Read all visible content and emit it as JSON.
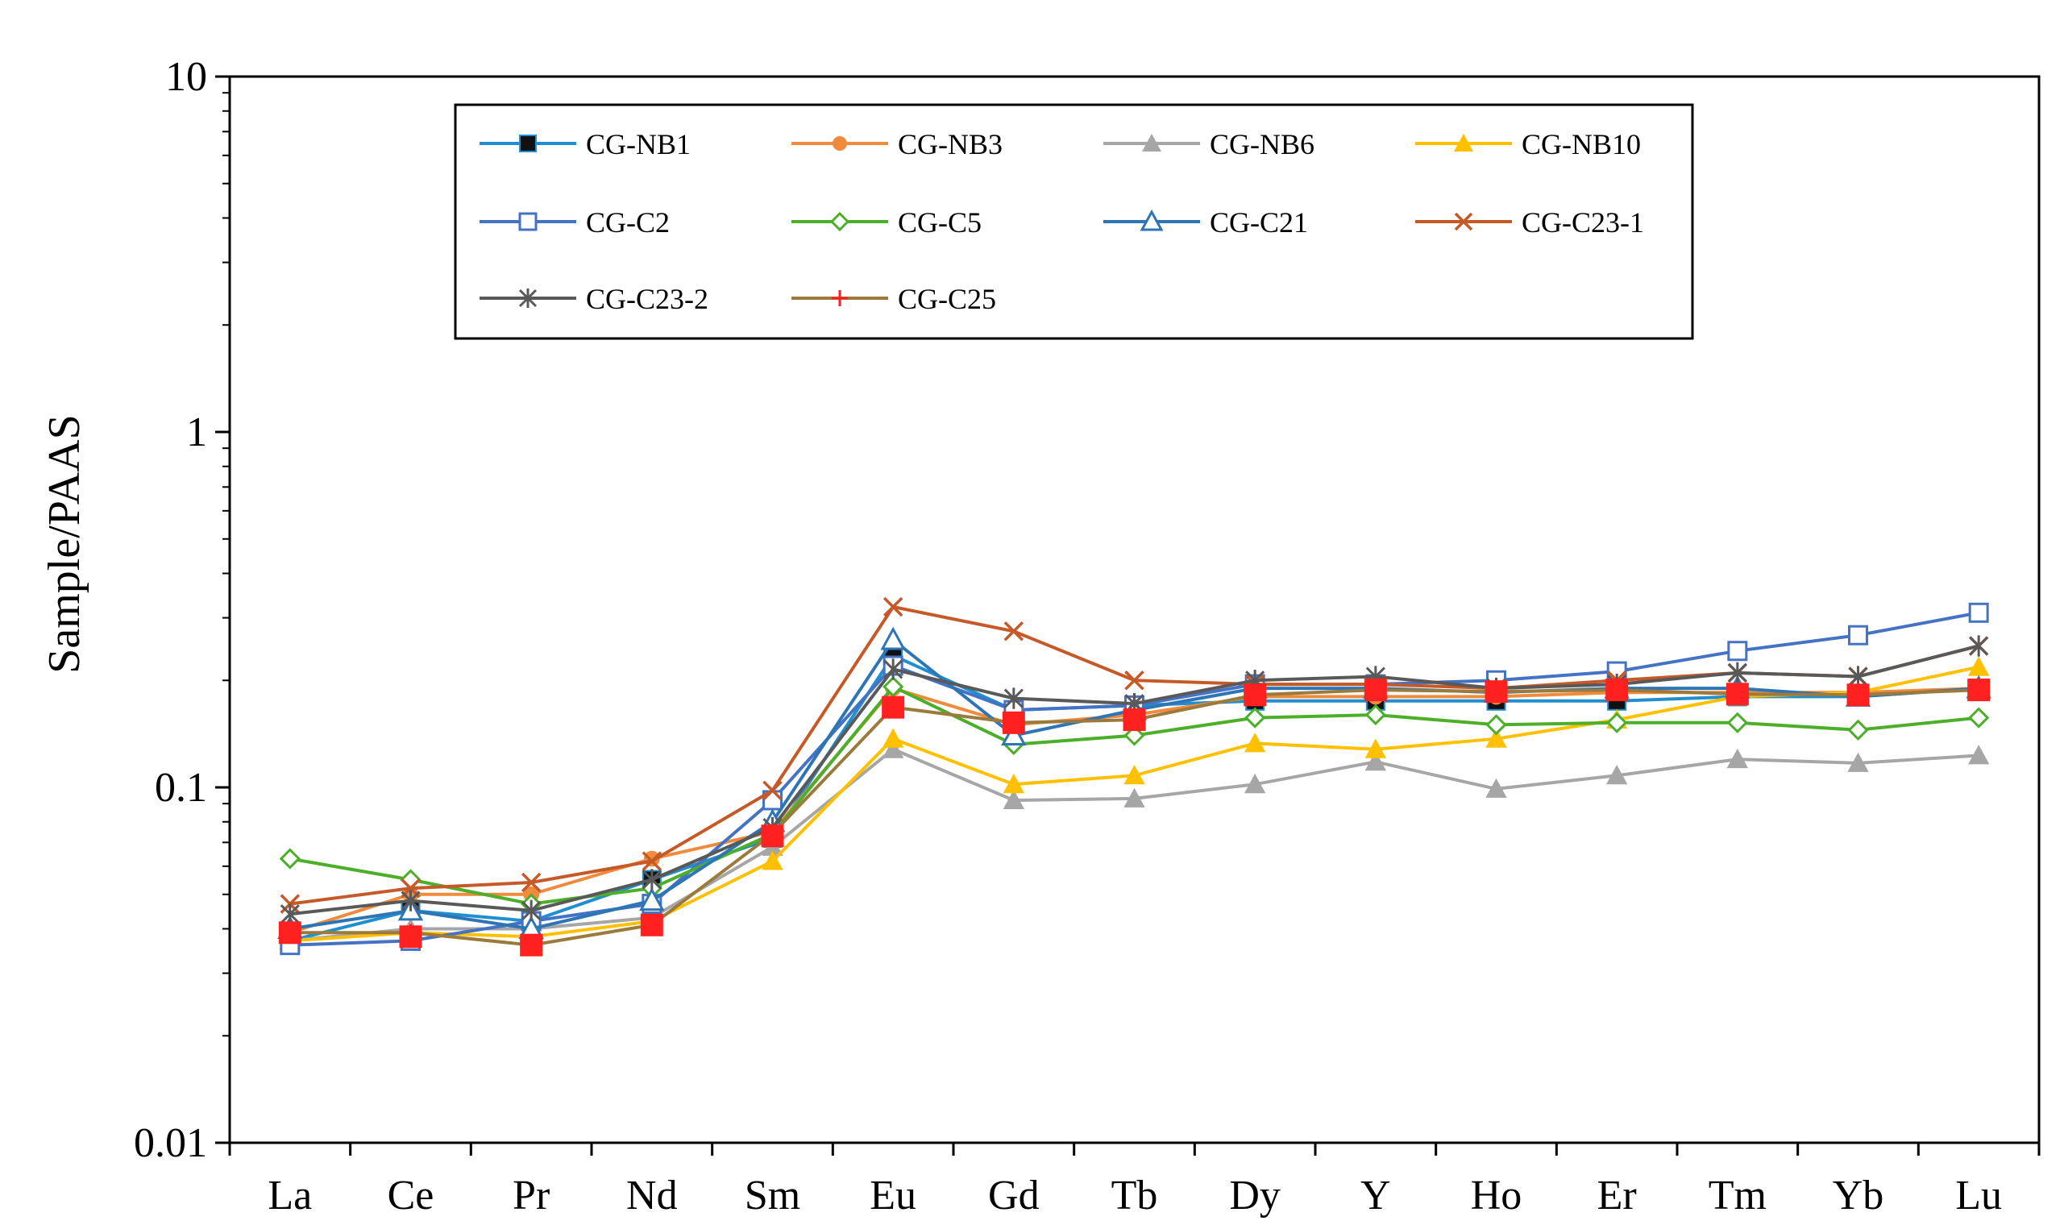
{
  "chart_data": {
    "type": "line",
    "title": "",
    "xlabel": "",
    "ylabel": "Sample/PAAS",
    "yscale": "log",
    "ylim": [
      0.01,
      10
    ],
    "yticks": [
      "0.01",
      "0.1",
      "1",
      "10"
    ],
    "grid": false,
    "legend": "top-center",
    "categories": [
      "La",
      "Ce",
      "Pr",
      "Nd",
      "Sm",
      "Eu",
      "Gd",
      "Tb",
      "Dy",
      "Y",
      "Ho",
      "Er",
      "Tm",
      "Yb",
      "Lu"
    ],
    "series": [
      {
        "name": "CG-NB1",
        "color": "#1f8fcf",
        "marker": "filled-square-black",
        "values": [
          0.037,
          0.045,
          0.042,
          0.055,
          0.072,
          0.235,
          0.165,
          0.17,
          0.175,
          0.175,
          0.175,
          0.175,
          0.18,
          0.18,
          0.19
        ]
      },
      {
        "name": "CG-NB3",
        "color": "#f08a3c",
        "marker": "filled-circle",
        "values": [
          0.039,
          0.05,
          0.05,
          0.063,
          0.075,
          0.19,
          0.15,
          0.16,
          0.18,
          0.18,
          0.18,
          0.185,
          0.185,
          0.185,
          0.19
        ]
      },
      {
        "name": "CG-NB6",
        "color": "#a6a6a6",
        "marker": "filled-triangle",
        "values": [
          0.037,
          0.04,
          0.04,
          0.043,
          0.068,
          0.128,
          0.092,
          0.093,
          0.102,
          0.118,
          0.099,
          0.108,
          0.12,
          0.117,
          0.123
        ]
      },
      {
        "name": "CG-NB10",
        "color": "#ffc000",
        "marker": "filled-triangle",
        "values": [
          0.037,
          0.039,
          0.038,
          0.042,
          0.062,
          0.137,
          0.102,
          0.108,
          0.133,
          0.128,
          0.137,
          0.155,
          0.18,
          0.185,
          0.218
        ]
      },
      {
        "name": "CG-C2",
        "color": "#4472c4",
        "marker": "open-square",
        "values": [
          0.036,
          0.037,
          0.042,
          0.047,
          0.092,
          0.22,
          0.165,
          0.17,
          0.195,
          0.195,
          0.2,
          0.212,
          0.242,
          0.268,
          0.31
        ]
      },
      {
        "name": "CG-C5",
        "color": "#4caf2a",
        "marker": "open-diamond",
        "values": [
          0.063,
          0.055,
          0.047,
          0.052,
          0.074,
          0.192,
          0.132,
          0.14,
          0.157,
          0.16,
          0.15,
          0.152,
          0.152,
          0.145,
          0.157
        ]
      },
      {
        "name": "CG-C21",
        "color": "#2e75b6",
        "marker": "open-triangle",
        "values": [
          0.04,
          0.045,
          0.04,
          0.048,
          0.08,
          0.26,
          0.14,
          0.165,
          0.19,
          0.19,
          0.185,
          0.19,
          0.19,
          0.18,
          0.19
        ]
      },
      {
        "name": "CG-C23-1",
        "color": "#c55a28",
        "marker": "x",
        "values": [
          0.047,
          0.052,
          0.054,
          0.062,
          0.098,
          0.322,
          0.275,
          0.2,
          0.195,
          0.195,
          0.19,
          0.2,
          0.21,
          0.205,
          0.25
        ]
      },
      {
        "name": "CG-C23-2",
        "color": "#595959",
        "marker": "star",
        "values": [
          0.044,
          0.048,
          0.045,
          0.055,
          0.077,
          0.215,
          0.178,
          0.172,
          0.2,
          0.205,
          0.19,
          0.195,
          0.21,
          0.205,
          0.25
        ]
      },
      {
        "name": "CG-C25",
        "color": "#9c7a3c",
        "marker": "plus-red",
        "values": [
          0.039,
          0.039,
          0.036,
          0.041,
          0.074,
          0.168,
          0.152,
          0.155,
          0.182,
          0.188,
          0.186,
          0.188,
          0.183,
          0.182,
          0.188
        ]
      }
    ]
  },
  "overlay": {
    "name": "red-square-markers",
    "color": "#ff2020",
    "values": [
      0.039,
      0.038,
      0.036,
      0.041,
      0.073,
      0.168,
      0.152,
      0.155,
      0.182,
      0.188,
      0.186,
      0.188,
      0.183,
      0.182,
      0.188
    ]
  }
}
